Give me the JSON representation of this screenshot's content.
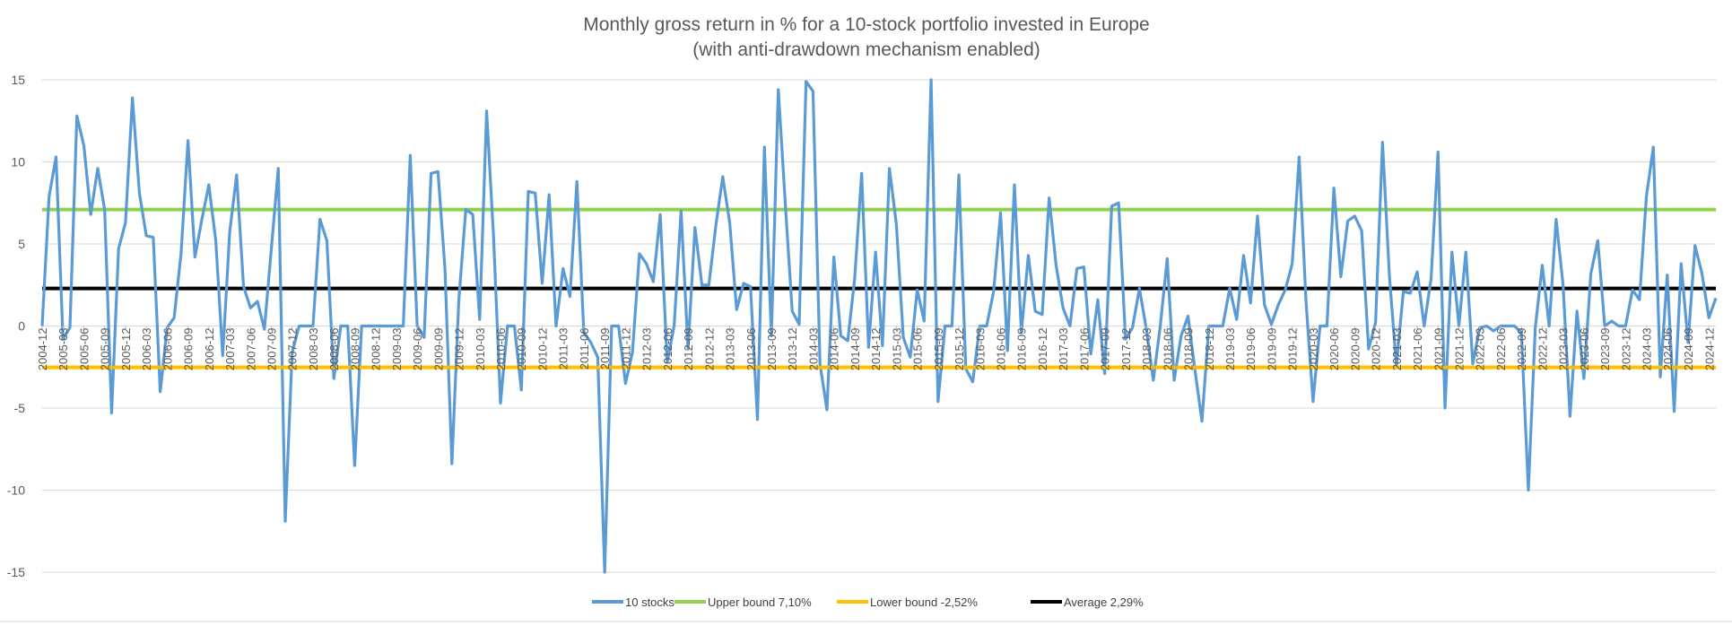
{
  "chart_data": {
    "type": "line",
    "title": "Monthly gross return in % for a 10-stock portfolio invested in Europe",
    "subtitle": "(with anti-drawdown mechanism enabled)",
    "ylim": [
      -15,
      15
    ],
    "yticks": [
      -15,
      -10,
      -5,
      0,
      5,
      10,
      15
    ],
    "grid": true,
    "legend_position": "bottom",
    "x_start": "2004-12",
    "x_end": "2024-12",
    "x_tick_labels": [
      "2004-12",
      "2005-03",
      "2005-06",
      "2005-09",
      "2005-12",
      "2006-03",
      "2006-06",
      "2006-09",
      "2006-12",
      "2007-03",
      "2007-06",
      "2007-09",
      "2007-12",
      "2008-03",
      "2008-06",
      "2008-09",
      "2008-12",
      "2009-03",
      "2009-06",
      "2009-09",
      "2009-12",
      "2010-03",
      "2010-06",
      "2010-09",
      "2010-12",
      "2011-03",
      "2011-06",
      "2011-09",
      "2011-12",
      "2012-03",
      "2012-06",
      "2012-09",
      "2012-12",
      "2013-03",
      "2013-06",
      "2013-09",
      "2013-12",
      "2014-03",
      "2014-06",
      "2014-09",
      "2014-12",
      "2015-03",
      "2015-06",
      "2015-09",
      "2015-12",
      "2016-03",
      "2016-06",
      "2016-09",
      "2016-12",
      "2017-03",
      "2017-06",
      "2017-09",
      "2017-12",
      "2018-03",
      "2018-06",
      "2018-09",
      "2018-12",
      "2019-03",
      "2019-06",
      "2019-09",
      "2019-12",
      "2020-03",
      "2020-06",
      "2020-09",
      "2020-12",
      "2021-03",
      "2021-06",
      "2021-09",
      "2021-12",
      "2022-03",
      "2022-06",
      "2022-09",
      "2022-12",
      "2023-03",
      "2023-06",
      "2023-09",
      "2023-12",
      "2024-03",
      "2024-06",
      "2024-09",
      "2024-12"
    ],
    "series": [
      {
        "name": "10 stocks",
        "color": "#5B9BD5",
        "values": [
          0,
          7.9,
          10.3,
          -0.8,
          -0.1,
          12.8,
          11,
          6.8,
          9.6,
          7.1,
          -5.3,
          4.7,
          6.3,
          13.9,
          8.1,
          5.5,
          5.4,
          -4,
          -0.1,
          0.5,
          4.4,
          11.3,
          4.2,
          6.5,
          8.6,
          5.2,
          -1.8,
          5.7,
          9.2,
          2.4,
          1.1,
          1.5,
          -0.2,
          4.7,
          9.6,
          -11.9,
          -1.6,
          0,
          0,
          0,
          6.5,
          5.2,
          -3.2,
          0,
          0,
          -8.5,
          0,
          0,
          0,
          0,
          0,
          0,
          0,
          10.4,
          0,
          -0.7,
          9.3,
          9.4,
          3.5,
          -8.4,
          1.6,
          7.1,
          6.8,
          0.4,
          13.1,
          5.4,
          -4.7,
          0,
          0,
          -3.9,
          8.2,
          8.1,
          2.6,
          8,
          0,
          3.5,
          1.8,
          8.8,
          -0.4,
          -1,
          -1.9,
          -15,
          0,
          0,
          -3.5,
          -1.6,
          4.4,
          3.8,
          2.7,
          6.8,
          -2.2,
          0,
          7,
          -1.4,
          6,
          2.5,
          2.5,
          6.1,
          9.1,
          6.3,
          1,
          2.6,
          2.4,
          -5.7,
          10.9,
          -0.6,
          14.4,
          7.5,
          0.9,
          0.1,
          14.9,
          14.3,
          -2.3,
          -5.1,
          4.2,
          -0.6,
          -0.9,
          2.9,
          9.3,
          -1.3,
          4.5,
          -1.2,
          9.6,
          6.2,
          -0.7,
          -1.9,
          2.2,
          0.3,
          15,
          -4.6,
          0,
          0,
          9.2,
          -2.6,
          -3.4,
          0,
          0,
          2.1,
          6.9,
          -1.5,
          8.6,
          -0.4,
          4.3,
          0.9,
          0.7,
          7.8,
          3.7,
          1.1,
          0,
          3.5,
          3.6,
          -1.7,
          1.6,
          -2.9,
          7.3,
          7.5,
          -0.8,
          -0.1,
          2.3,
          -0.2,
          -3.3,
          0,
          4.1,
          -3.3,
          -0.6,
          0.6,
          -2.7,
          -5.8,
          0,
          0,
          0,
          2.3,
          0.4,
          4.3,
          1.4,
          6.7,
          1.3,
          0.1,
          1.3,
          2.2,
          3.8,
          10.3,
          1.4,
          -4.6,
          0,
          0,
          8.4,
          3,
          6.4,
          6.7,
          5.8,
          -1.4,
          0.2,
          11.2,
          3,
          -2.4,
          2.1,
          2,
          3.3,
          0,
          2.9,
          10.6,
          -5,
          4.5,
          0,
          4.5,
          -2.3,
          -0.1,
          0,
          -0.3,
          0,
          0,
          0,
          -0.4,
          -10,
          -0.1,
          3.7,
          0,
          6.5,
          2.5,
          -5.5,
          0.9,
          -3.2,
          3.2,
          5.2,
          0,
          0.3,
          0,
          0,
          2.2,
          1.6,
          7.9,
          10.9,
          -3.1,
          3.1,
          -5.2,
          3.8,
          -1,
          4.9,
          3.2,
          0.5,
          1.7
        ]
      },
      {
        "name": "Upper bound 7,10%",
        "color": "#92D050",
        "value": 7.1
      },
      {
        "name": "Lower bound -2,52%",
        "color": "#FFC000",
        "value": -2.52
      },
      {
        "name": "Average 2,29%",
        "color": "#000000",
        "value": 2.29
      }
    ]
  }
}
